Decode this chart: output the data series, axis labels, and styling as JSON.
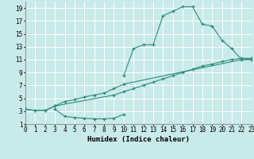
{
  "line1_x": [
    10,
    11,
    12,
    13,
    14,
    15,
    16,
    17,
    18,
    19,
    20,
    21,
    22,
    23
  ],
  "line1_y": [
    8.5,
    12.7,
    13.3,
    13.3,
    17.8,
    18.5,
    19.2,
    19.2,
    16.5,
    16.2,
    14.0,
    12.7,
    11.0,
    11.0
  ],
  "line2_x": [
    0,
    1,
    2,
    3,
    4,
    5,
    6,
    7,
    8,
    9,
    10,
    22,
    23
  ],
  "line2_y": [
    3.3,
    3.1,
    3.1,
    3.8,
    4.5,
    4.8,
    5.2,
    5.5,
    5.8,
    6.5,
    7.2,
    11.0,
    11.0
  ],
  "line3_x": [
    0,
    1,
    2,
    3,
    9,
    10,
    11,
    12,
    13,
    14,
    15,
    16,
    17,
    18,
    19,
    20,
    21,
    22,
    23
  ],
  "line3_y": [
    3.3,
    3.1,
    3.1,
    3.8,
    5.5,
    6.0,
    6.5,
    7.0,
    7.5,
    8.0,
    8.5,
    9.0,
    9.5,
    10.0,
    10.3,
    10.7,
    11.0,
    11.2,
    11.2
  ],
  "line4_x": [
    3,
    4,
    5,
    6,
    7,
    8,
    9,
    10
  ],
  "line4_y": [
    3.3,
    2.2,
    2.0,
    1.9,
    1.8,
    1.8,
    1.9,
    2.5
  ],
  "line_color": "#2e8b7a",
  "bg_color": "#c8eaea",
  "grid_color": "#ffffff",
  "xlabel": "Humidex (Indice chaleur)",
  "xlim": [
    0,
    23
  ],
  "ylim": [
    1,
    20
  ],
  "yticks": [
    1,
    3,
    5,
    7,
    9,
    11,
    13,
    15,
    17,
    19
  ],
  "xticks": [
    0,
    1,
    2,
    3,
    4,
    5,
    6,
    7,
    8,
    9,
    10,
    11,
    12,
    13,
    14,
    15,
    16,
    17,
    18,
    19,
    20,
    21,
    22,
    23
  ],
  "xlabel_fontsize": 6.5,
  "tick_fontsize": 5.5
}
